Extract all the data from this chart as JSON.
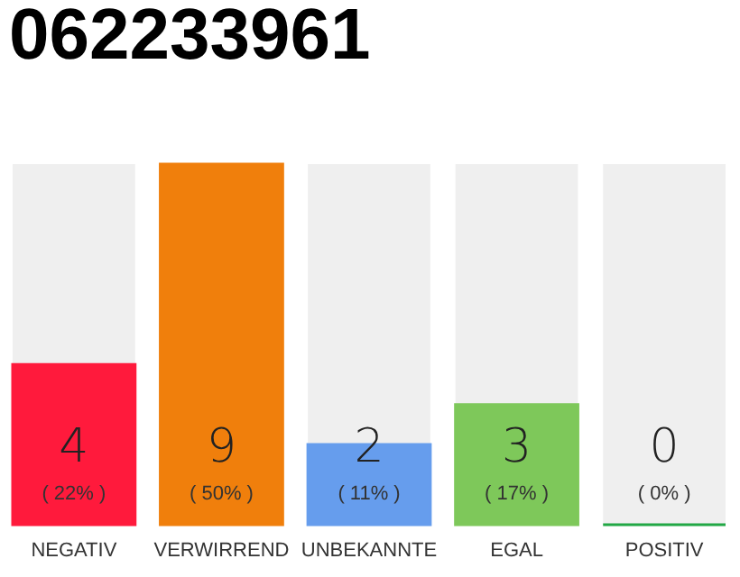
{
  "chart_data": {
    "type": "bar",
    "title": "062233961",
    "categories": [
      "NEGATIV",
      "VERWIRREND",
      "UNBEKANNTE",
      "EGAL",
      "POSITIV"
    ],
    "values": [
      4,
      9,
      2,
      3,
      0
    ],
    "colors": [
      "#ff1a3c",
      "#f07f0c",
      "#669ded",
      "#7ec85a",
      "#22a845"
    ],
    "data_labels": true,
    "annotations": [
      "( 22% )",
      "( 50% )",
      "( 11% )",
      "( 17% )",
      "( 0% )"
    ],
    "grid": false,
    "legend": false,
    "tick_labels": "x"
  }
}
